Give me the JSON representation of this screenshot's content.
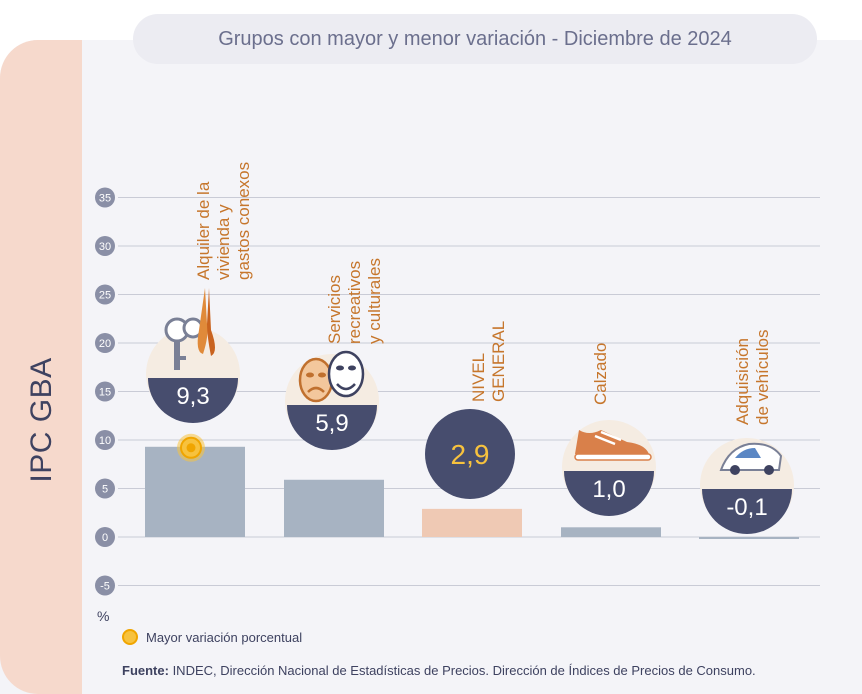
{
  "title": "Grupos con mayor y menor variación - Diciembre de 2024",
  "side_label": "IPC GBA",
  "unit_label": "%",
  "legend": {
    "label": "Mayor variación porcentual"
  },
  "source": {
    "label": "Fuente:",
    "text": " INDEC, Dirección Nacional de Estadísticas de Precios. Dirección de Índices de Precios de Consumo."
  },
  "colors": {
    "bar_group": "#a7b3c2",
    "bar_general": "#efc9b4",
    "badge": "#474d6e",
    "badge_bg": "#f5ece2",
    "accent": "#f0a500",
    "label_orange": "#c6762c"
  },
  "icons": [
    "keys-pliers-icon",
    "theater-masks-icon",
    "",
    "sneaker-icon",
    "car-icon"
  ],
  "chart_data": {
    "type": "bar",
    "categories": [
      "Alquiler de la vivienda y gastos conexos",
      "Servicios recreativos y culturales",
      "NIVEL GENERAL",
      "Calzado",
      "Adquisición de vehículos"
    ],
    "category_lines": [
      [
        "Alquiler de la",
        "vivienda y",
        "gastos conexos"
      ],
      [
        "Servicios",
        "recreativos",
        "y culturales"
      ],
      [
        "NIVEL",
        "GENERAL"
      ],
      [
        "Calzado"
      ],
      [
        "Adquisición",
        "de vehículos"
      ]
    ],
    "values": [
      9.3,
      5.9,
      2.9,
      1.0,
      -0.1
    ],
    "value_labels": [
      "9,3",
      "5,9",
      "2,9",
      "1,0",
      "-0,1"
    ],
    "yticks": [
      35,
      30,
      25,
      20,
      15,
      10,
      5,
      0,
      -5
    ],
    "ylim": [
      -5,
      35
    ],
    "ylabel": "%",
    "highlight_index": 0,
    "grid": true
  }
}
